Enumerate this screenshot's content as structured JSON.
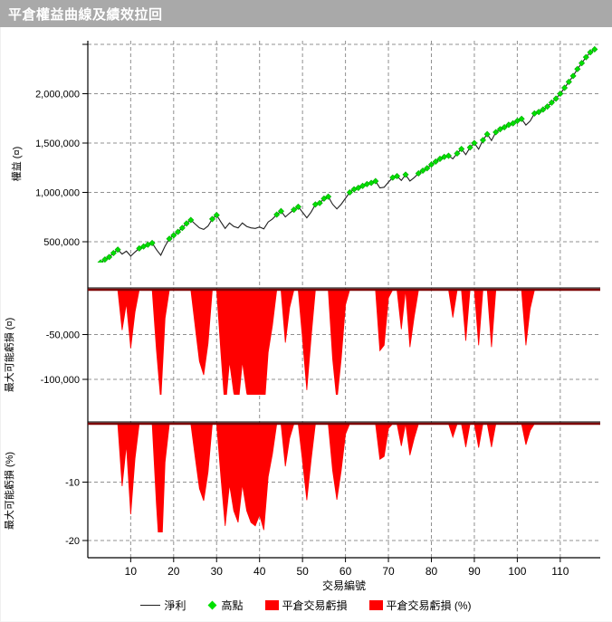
{
  "title_bar": {
    "title": "平倉權益曲線及績效拉回"
  },
  "colors": {
    "title_bg": "#a9a9a9",
    "title_fg": "#ffffff",
    "equity_line": "#1f1f1f",
    "high_marker": "#00e000",
    "high_marker_edge": "#00a800",
    "loss_fill": "#ff0000",
    "zero_line": "#7c0404",
    "grid": "#909090",
    "axis": "#000000",
    "tick_text": "#000000"
  },
  "x_axis": {
    "title": "交易編號",
    "ticks": [
      10,
      20,
      30,
      40,
      50,
      60,
      70,
      80,
      90,
      100,
      110
    ],
    "min": 0,
    "max": 119
  },
  "legend": {
    "items": [
      {
        "label": "淨利",
        "marker": "line"
      },
      {
        "label": "高點",
        "marker": "diamond"
      },
      {
        "label": "平倉交易虧損",
        "marker": "box"
      },
      {
        "label": "平倉交易虧損 (%)",
        "marker": "box"
      }
    ]
  },
  "chart_data": [
    {
      "id": "equity",
      "type": "line",
      "ylabel": "權益 (¤)",
      "ylim": [
        40000,
        2520000
      ],
      "grid_values": [
        500000,
        1000000,
        1500000,
        2000000,
        2500000
      ],
      "yticks": [
        {
          "value": 2000000,
          "label": "2,000,000"
        },
        {
          "value": 1500000,
          "label": "1,500,000"
        },
        {
          "value": 1000000,
          "label": "1,000,000"
        },
        {
          "value": 500000,
          "label": "500,000"
        }
      ],
      "series_name": "淨利",
      "marker_series_name": "高點",
      "values": [
        180000,
        240000,
        290000,
        320000,
        345000,
        385000,
        420000,
        375000,
        405000,
        355000,
        395000,
        432000,
        452000,
        470000,
        487000,
        420000,
        363000,
        455000,
        530000,
        565000,
        600000,
        640000,
        685000,
        720000,
        680000,
        640000,
        625000,
        660000,
        730000,
        770000,
        700000,
        635000,
        690000,
        655000,
        640000,
        690000,
        655000,
        640000,
        635000,
        650000,
        630000,
        700000,
        730000,
        775000,
        810000,
        751000,
        790000,
        824000,
        854000,
        800000,
        742000,
        800000,
        878000,
        892000,
        937000,
        957000,
        880000,
        833000,
        880000,
        940000,
        1000000,
        1031000,
        1046000,
        1066000,
        1084000,
        1096000,
        1114000,
        1046000,
        1052000,
        1105000,
        1150000,
        1165000,
        1121000,
        1180000,
        1116000,
        1150000,
        1193000,
        1220000,
        1245000,
        1282000,
        1312000,
        1340000,
        1360000,
        1371000,
        1340000,
        1395000,
        1440000,
        1383000,
        1455000,
        1500000,
        1438000,
        1530000,
        1590000,
        1526000,
        1610000,
        1640000,
        1660000,
        1685000,
        1700000,
        1725000,
        1745000,
        1683000,
        1724000,
        1800000,
        1815000,
        1840000,
        1870000,
        1910000,
        1950000,
        2000000,
        2060000,
        2120000,
        2180000,
        2250000,
        2310000,
        2370000,
        2420000,
        2450000
      ],
      "high_trades": [
        1,
        2,
        3,
        4,
        5,
        6,
        7,
        12,
        13,
        14,
        15,
        19,
        20,
        21,
        22,
        23,
        24,
        29,
        30,
        44,
        45,
        48,
        49,
        53,
        54,
        55,
        56,
        61,
        62,
        63,
        64,
        65,
        66,
        67,
        71,
        72,
        74,
        77,
        78,
        79,
        80,
        81,
        82,
        83,
        84,
        86,
        87,
        89,
        90,
        92,
        93,
        95,
        96,
        97,
        98,
        99,
        100,
        101,
        104,
        105,
        106,
        107,
        108,
        109,
        110,
        111,
        112,
        113,
        114,
        115,
        116,
        117,
        118
      ]
    },
    {
      "id": "dd_cash",
      "type": "area",
      "ylabel": "最大可能虧損 (¤)",
      "ylim": [
        -145000,
        0
      ],
      "grid_values": [
        -50000,
        -100000
      ],
      "yticks": [
        {
          "value": -50000,
          "label": "-50,000"
        },
        {
          "value": -100000,
          "label": "-100,000"
        }
      ],
      "series_name": "平倉交易虧損",
      "values": [
        0,
        0,
        0,
        0,
        0,
        0,
        0,
        -45000,
        -15000,
        -65000,
        -25000,
        0,
        0,
        0,
        0,
        -67000,
        -124000,
        -32000,
        0,
        0,
        0,
        0,
        0,
        0,
        -40000,
        -80000,
        -95000,
        -60000,
        0,
        0,
        -70000,
        -135000,
        -80000,
        -115000,
        -130000,
        -80000,
        -115000,
        -130000,
        -135000,
        -120000,
        -140000,
        -70000,
        -40000,
        0,
        0,
        -59000,
        -20000,
        0,
        0,
        -54000,
        -112000,
        -54000,
        0,
        0,
        0,
        0,
        -77000,
        -124000,
        -77000,
        -17000,
        0,
        0,
        0,
        0,
        0,
        0,
        0,
        -68000,
        -62000,
        -9000,
        0,
        0,
        -44000,
        0,
        -64000,
        -30000,
        0,
        0,
        0,
        0,
        0,
        0,
        0,
        0,
        -31000,
        0,
        0,
        -57000,
        0,
        0,
        -62000,
        0,
        0,
        -64000,
        0,
        0,
        0,
        0,
        0,
        0,
        0,
        -62000,
        -21000,
        0,
        0,
        0,
        0,
        0,
        0,
        0,
        0,
        0,
        0,
        0,
        0,
        0,
        0,
        0
      ]
    },
    {
      "id": "dd_pct",
      "type": "area",
      "ylabel": "最大可能虧損 (%)",
      "ylim": [
        -23,
        0
      ],
      "grid_values": [
        -10,
        -20
      ],
      "yticks": [
        {
          "value": -10,
          "label": "-10"
        },
        {
          "value": -20,
          "label": "-20"
        }
      ],
      "series_name": "平倉交易虧損 (%)",
      "values": [
        0,
        0,
        0,
        0,
        0,
        0,
        0,
        -10.7,
        -3.6,
        -15.5,
        -6.0,
        0,
        0,
        0,
        0,
        -13.8,
        -25.5,
        -6.6,
        0,
        0,
        0,
        0,
        0,
        0,
        -5.6,
        -11.1,
        -13.2,
        -8.3,
        0,
        0,
        -9.1,
        -17.5,
        -10.4,
        -14.9,
        -16.9,
        -10.4,
        -14.9,
        -16.9,
        -17.5,
        -15.6,
        -18.2,
        -9.1,
        -5.2,
        0,
        0,
        -7.3,
        -2.5,
        0,
        0,
        -6.3,
        -13.1,
        -6.3,
        0,
        0,
        0,
        0,
        -8.0,
        -13.0,
        -8.0,
        -1.8,
        0,
        0,
        0,
        0,
        0,
        0,
        0,
        -6.1,
        -5.6,
        -0.8,
        0,
        0,
        -3.8,
        0,
        -5.4,
        -2.5,
        0,
        0,
        0,
        0,
        0,
        0,
        0,
        0,
        -2.3,
        0,
        0,
        -4.0,
        0,
        0,
        -4.1,
        0,
        0,
        -4.0,
        0,
        0,
        0,
        0,
        0,
        0,
        0,
        -3.6,
        -1.2,
        0,
        0,
        0,
        0,
        0,
        0,
        0,
        0,
        0,
        0,
        0,
        0,
        0,
        0,
        0
      ]
    }
  ]
}
